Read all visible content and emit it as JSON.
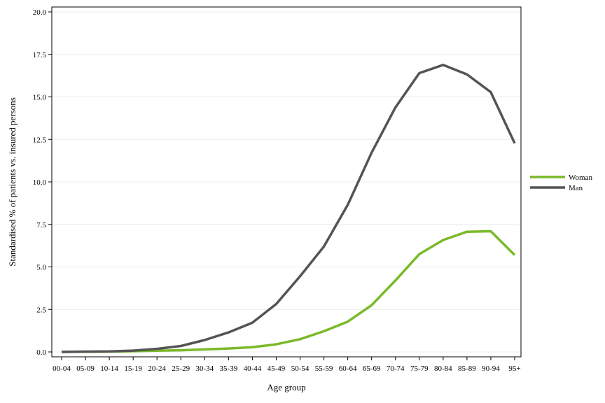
{
  "chart_data": {
    "type": "line",
    "title": "",
    "xlabel": "Age group",
    "ylabel": "Standardised % of patients vs. insured persons",
    "categories": [
      "00-04",
      "05-09",
      "10-14",
      "15-19",
      "20-24",
      "25-29",
      "30-34",
      "35-39",
      "40-44",
      "45-49",
      "50-54",
      "55-59",
      "60-64",
      "65-69",
      "70-74",
      "75-79",
      "80-84",
      "85-89",
      "90-94",
      "95+"
    ],
    "ylim": [
      0,
      20
    ],
    "yticks": [
      "0.0",
      "2.5",
      "5.0",
      "7.5",
      "10.0",
      "12.5",
      "15.0",
      "17.5",
      "20.0"
    ],
    "grid": true,
    "legend_position": "right",
    "series": [
      {
        "name": "Woman",
        "color": "#7ab929",
        "values": [
          0.0,
          0.01,
          0.02,
          0.04,
          0.07,
          0.1,
          0.15,
          0.2,
          0.28,
          0.45,
          0.75,
          1.22,
          1.78,
          2.75,
          4.2,
          5.75,
          6.58,
          7.07,
          7.1,
          5.7
        ]
      },
      {
        "name": "Man",
        "color": "#545454",
        "values": [
          0.0,
          0.02,
          0.03,
          0.08,
          0.18,
          0.35,
          0.7,
          1.15,
          1.72,
          2.82,
          4.45,
          6.2,
          8.65,
          11.72,
          14.38,
          16.4,
          16.88,
          16.32,
          15.28,
          12.27
        ]
      }
    ]
  }
}
